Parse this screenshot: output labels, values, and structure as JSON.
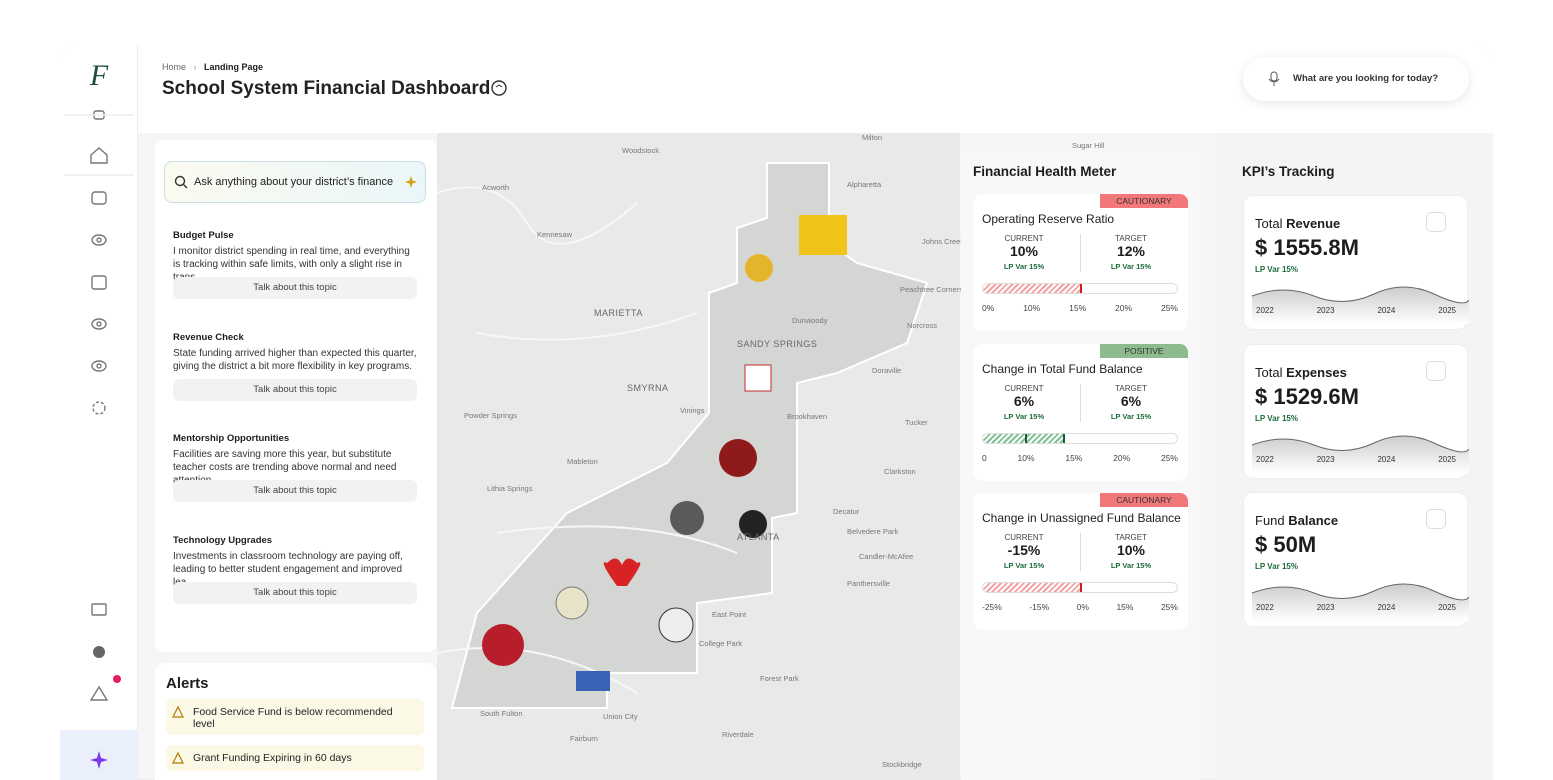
{
  "logo": "F",
  "breadcrumb": [
    "Home",
    "Landing Page"
  ],
  "title": "School System Financial Dashboard",
  "search_placeholder": "What are you looking for today?",
  "ask_placeholder": "Ask anything about your district’s finance",
  "topics": [
    {
      "title": "Budget Pulse",
      "text": "I monitor district spending in real time, and everything is tracking within safe limits, with only a slight rise in trans...",
      "action": "Talk about this topic"
    },
    {
      "title": "Revenue Check",
      "text": "State funding arrived higher than expected this quarter, giving the district a bit more flexibility in key programs.",
      "action": "Talk about this topic"
    },
    {
      "title": "Mentorship Opportunities",
      "text": "Facilities are saving more this year, but substitute teacher costs are trending above normal and need attention.",
      "action": "Talk about this topic"
    },
    {
      "title": "Technology Upgrades",
      "text": "Investments in classroom technology are paying off, leading to better student engagement and improved lea...",
      "action": "Talk about this topic"
    }
  ],
  "alerts": {
    "title": "Alerts",
    "items": [
      "Food Service Fund is below recommended level",
      "Grant Funding Expiring in 60 days"
    ]
  },
  "map_labels": [
    "Milton",
    "Sugar Hill",
    "Woodstock",
    "Alpharetta",
    "Acworth",
    "Kennesaw",
    "Johns Creek",
    "Peachtree Corners",
    "Norcross",
    "MARIETTA",
    "Dunwoody",
    "SANDY SPRINGS",
    "Doraville",
    "SMYRNA",
    "Powder Springs",
    "Vinings",
    "Brookhaven",
    "Tucker",
    "Mableton",
    "Clarkston",
    "Lithia Springs",
    "Decatur",
    "Belvedere Park",
    "ATLANTA",
    "Candler-McAfee",
    "Panthersville",
    "East Point",
    "College Park",
    "Forest Park",
    "South Fulton",
    "Union City",
    "Riverdale",
    "Fairburn",
    "Stockbridge"
  ],
  "health_meter": {
    "title": "Financial Health Meter",
    "items": [
      {
        "status": "CAUTIONARY",
        "name": "Operating Reserve Ratio",
        "current_label": "CURRENT",
        "current": "10%",
        "current_var": "LP Var 15%",
        "target_label": "TARGET",
        "target": "12%",
        "target_var": "LP Var 15%",
        "scale": [
          "0%",
          "10%",
          "15%",
          "20%",
          "25%"
        ]
      },
      {
        "status": "POSITIVE",
        "name": "Change in Total Fund Balance",
        "current_label": "CURRENT",
        "current": "6%",
        "current_var": "LP Var 15%",
        "target_label": "TARGET",
        "target": "6%",
        "target_var": "LP Var 15%",
        "scale": [
          "0",
          "10%",
          "15%",
          "20%",
          "25%"
        ]
      },
      {
        "status": "CAUTIONARY",
        "name": "Change in Unassigned Fund Balance",
        "current_label": "CURRENT",
        "current": "-15%",
        "current_var": "LP Var 15%",
        "target_label": "TARGET",
        "target": "10%",
        "target_var": "LP Var 15%",
        "scale": [
          "-25%",
          "-15%",
          "0%",
          "15%",
          "25%"
        ]
      }
    ]
  },
  "kpi": {
    "title": "KPI’s Tracking",
    "cards": [
      {
        "prefix": "Total",
        "name": "Revenue",
        "value": "$ 1555.8M",
        "var": "LP Var 15%",
        "years": [
          "2022",
          "2023",
          "2024",
          "2025"
        ]
      },
      {
        "prefix": "Total",
        "name": "Expenses",
        "value": "$ 1529.6M",
        "var": "LP Var 15%",
        "years": [
          "2022",
          "2023",
          "2024",
          "2025"
        ]
      },
      {
        "prefix": "Fund",
        "name": "Balance",
        "value": "$ 50M",
        "var": "LP Var 15%",
        "years": [
          "2022",
          "2023",
          "2024",
          "2025"
        ]
      }
    ]
  }
}
